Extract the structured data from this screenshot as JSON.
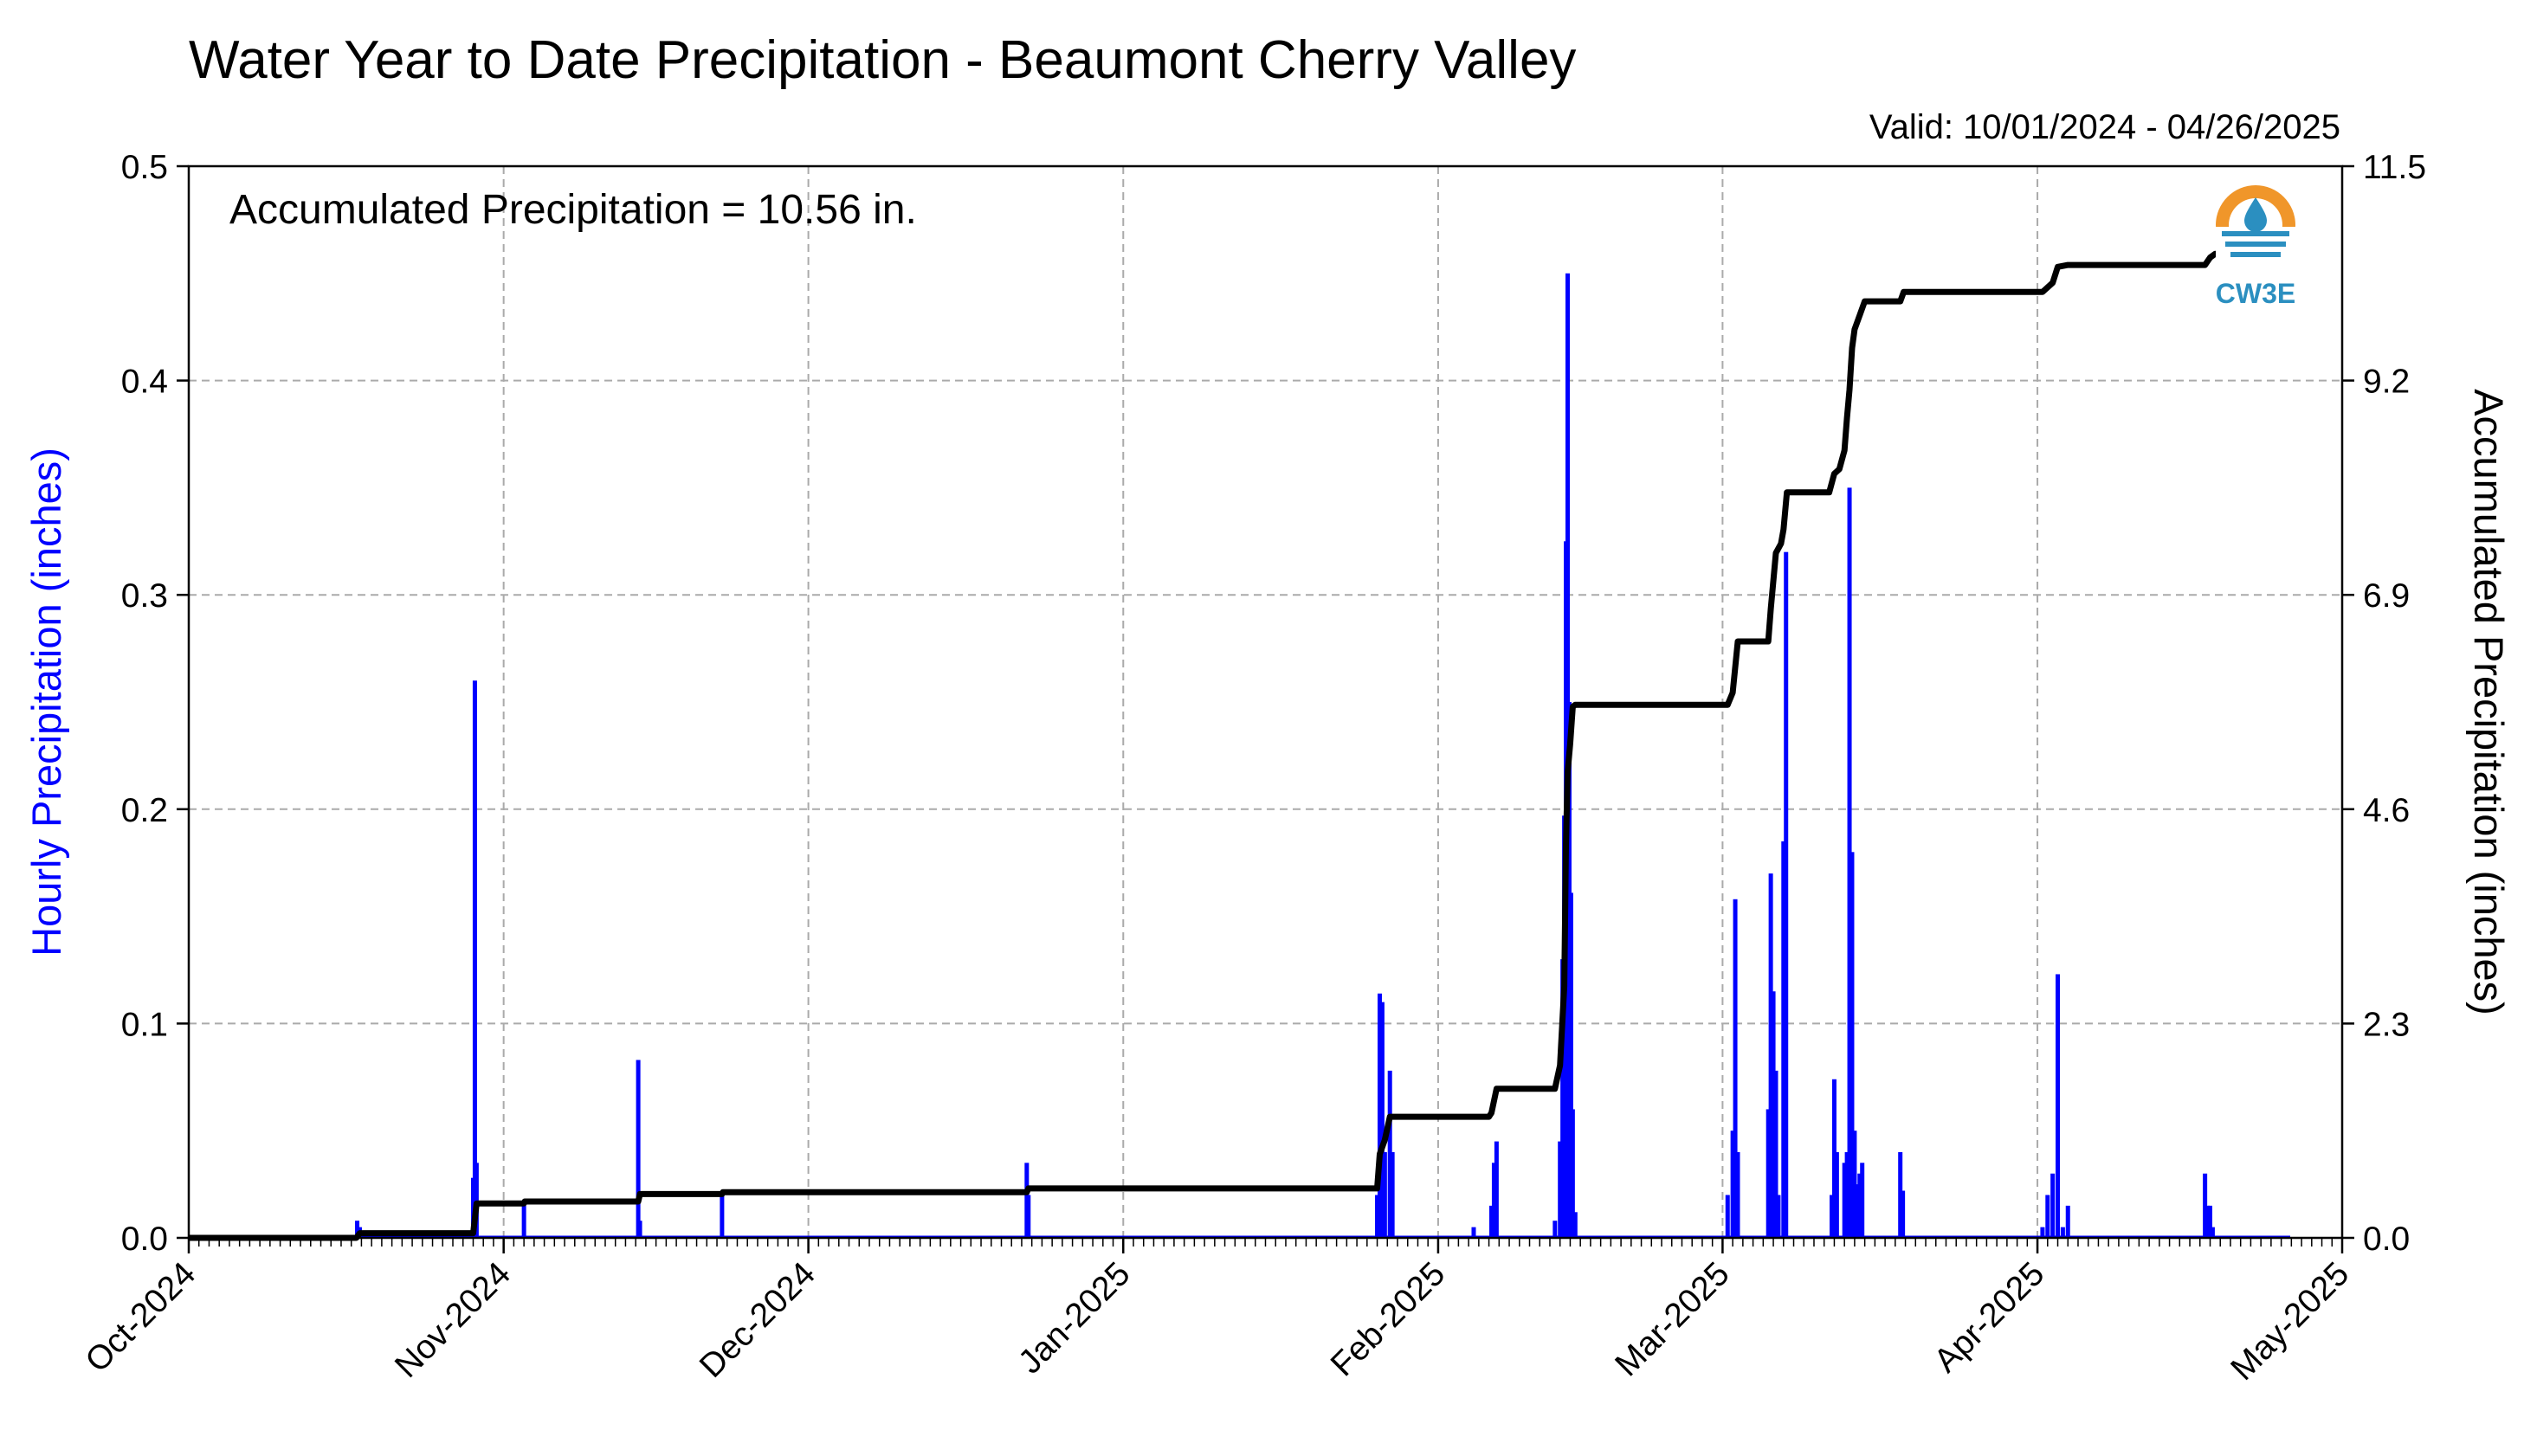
{
  "chart_data": {
    "type": "bar+line",
    "title": "Water Year to Date Precipitation - Beaumont Cherry Valley",
    "valid_label": "Valid: 10/01/2024 - 04/26/2025",
    "annotation": "Accumulated Precipitation = 10.56 in.",
    "logo_text": "CW3E",
    "ylabel_left": "Hourly Precipitation (inches)",
    "ylabel_right": "Accumulated Precipitation (inches)",
    "x_start": "2024-10-01",
    "x_end": "2025-05-01",
    "ylim_left": [
      0,
      0.5
    ],
    "ylim_right": [
      0,
      11.5
    ],
    "yticks_left": [
      "0.0",
      "0.1",
      "0.2",
      "0.3",
      "0.4",
      "0.5"
    ],
    "yticks_right": [
      "0.0",
      "2.3",
      "4.6",
      "6.9",
      "9.2",
      "11.5"
    ],
    "xticks": [
      {
        "label": "Oct-2024",
        "date": "2024-10-01"
      },
      {
        "label": "Nov-2024",
        "date": "2024-11-01"
      },
      {
        "label": "Dec-2024",
        "date": "2024-12-01"
      },
      {
        "label": "Jan-2025",
        "date": "2025-01-01"
      },
      {
        "label": "Feb-2025",
        "date": "2025-02-01"
      },
      {
        "label": "Mar-2025",
        "date": "2025-03-01"
      },
      {
        "label": "Apr-2025",
        "date": "2025-04-01"
      },
      {
        "label": "May-2025",
        "date": "2025-05-01"
      }
    ],
    "grid": true,
    "colors": {
      "hourly": "#0000ff",
      "accumulated": "#000000",
      "grid": "#aaaaaa",
      "logo": "#2b8fc0",
      "logo_ring": "#f0962a"
    },
    "hourly": [
      {
        "t": "2024-10-17T14:00",
        "v": 0.008
      },
      {
        "t": "2024-10-17T20:00",
        "v": 0.005
      },
      {
        "t": "2024-10-29T00:00",
        "v": 0.028
      },
      {
        "t": "2024-10-29T04:00",
        "v": 0.26
      },
      {
        "t": "2024-10-29T08:00",
        "v": 0.035
      },
      {
        "t": "2024-11-03T00:00",
        "v": 0.015
      },
      {
        "t": "2024-11-14T06:00",
        "v": 0.083
      },
      {
        "t": "2024-11-14T10:00",
        "v": 0.008
      },
      {
        "t": "2024-11-22T12:00",
        "v": 0.02
      },
      {
        "t": "2024-12-22T12:00",
        "v": 0.035
      },
      {
        "t": "2024-12-22T16:00",
        "v": 0.02
      },
      {
        "t": "2025-01-26T00:00",
        "v": 0.02
      },
      {
        "t": "2025-01-26T06:00",
        "v": 0.114
      },
      {
        "t": "2025-01-26T12:00",
        "v": 0.11
      },
      {
        "t": "2025-01-26T18:00",
        "v": 0.04
      },
      {
        "t": "2025-01-27T06:00",
        "v": 0.078
      },
      {
        "t": "2025-01-27T12:00",
        "v": 0.04
      },
      {
        "t": "2025-02-04T12:00",
        "v": 0.005
      },
      {
        "t": "2025-02-06T06:00",
        "v": 0.015
      },
      {
        "t": "2025-02-06T12:00",
        "v": 0.035
      },
      {
        "t": "2025-02-06T18:00",
        "v": 0.045
      },
      {
        "t": "2025-02-12T12:00",
        "v": 0.008
      },
      {
        "t": "2025-02-13T00:00",
        "v": 0.045
      },
      {
        "t": "2025-02-13T06:00",
        "v": 0.13
      },
      {
        "t": "2025-02-13T10:00",
        "v": 0.197
      },
      {
        "t": "2025-02-13T14:00",
        "v": 0.325
      },
      {
        "t": "2025-02-13T18:00",
        "v": 0.45
      },
      {
        "t": "2025-02-13T22:00",
        "v": 0.25
      },
      {
        "t": "2025-02-14T02:00",
        "v": 0.161
      },
      {
        "t": "2025-02-14T06:00",
        "v": 0.06
      },
      {
        "t": "2025-02-14T12:00",
        "v": 0.012
      },
      {
        "t": "2025-03-01T12:00",
        "v": 0.02
      },
      {
        "t": "2025-03-02T00:00",
        "v": 0.05
      },
      {
        "t": "2025-03-02T06:00",
        "v": 0.158
      },
      {
        "t": "2025-03-02T12:00",
        "v": 0.04
      },
      {
        "t": "2025-03-05T12:00",
        "v": 0.06
      },
      {
        "t": "2025-03-05T18:00",
        "v": 0.17
      },
      {
        "t": "2025-03-06T00:00",
        "v": 0.115
      },
      {
        "t": "2025-03-06T06:00",
        "v": 0.078
      },
      {
        "t": "2025-03-06T12:00",
        "v": 0.02
      },
      {
        "t": "2025-03-07T00:00",
        "v": 0.185
      },
      {
        "t": "2025-03-07T06:00",
        "v": 0.32
      },
      {
        "t": "2025-03-11T18:00",
        "v": 0.02
      },
      {
        "t": "2025-03-12T00:00",
        "v": 0.074
      },
      {
        "t": "2025-03-12T06:00",
        "v": 0.04
      },
      {
        "t": "2025-03-13T00:00",
        "v": 0.035
      },
      {
        "t": "2025-03-13T06:00",
        "v": 0.04
      },
      {
        "t": "2025-03-13T12:00",
        "v": 0.35
      },
      {
        "t": "2025-03-13T18:00",
        "v": 0.18
      },
      {
        "t": "2025-03-14T00:00",
        "v": 0.05
      },
      {
        "t": "2025-03-14T06:00",
        "v": 0.025
      },
      {
        "t": "2025-03-14T12:00",
        "v": 0.03
      },
      {
        "t": "2025-03-14T18:00",
        "v": 0.035
      },
      {
        "t": "2025-03-18T12:00",
        "v": 0.04
      },
      {
        "t": "2025-03-18T18:00",
        "v": 0.022
      },
      {
        "t": "2025-04-01T12:00",
        "v": 0.005
      },
      {
        "t": "2025-04-02T00:00",
        "v": 0.02
      },
      {
        "t": "2025-04-02T12:00",
        "v": 0.03
      },
      {
        "t": "2025-04-03T00:00",
        "v": 0.123
      },
      {
        "t": "2025-04-03T12:00",
        "v": 0.005
      },
      {
        "t": "2025-04-04T00:00",
        "v": 0.015
      },
      {
        "t": "2025-04-17T12:00",
        "v": 0.03
      },
      {
        "t": "2025-04-17T18:00",
        "v": 0.015
      },
      {
        "t": "2025-04-18T00:00",
        "v": 0.015
      },
      {
        "t": "2025-04-18T06:00",
        "v": 0.005
      }
    ],
    "accumulated": [
      {
        "t": "2024-10-01T00:00",
        "v": 0.0
      },
      {
        "t": "2024-10-17T12:00",
        "v": 0.0
      },
      {
        "t": "2024-10-17T20:00",
        "v": 0.05
      },
      {
        "t": "2024-10-29T00:00",
        "v": 0.05
      },
      {
        "t": "2024-10-29T08:00",
        "v": 0.37
      },
      {
        "t": "2024-11-03T00:00",
        "v": 0.37
      },
      {
        "t": "2024-11-03T02:00",
        "v": 0.39
      },
      {
        "t": "2024-11-14T06:00",
        "v": 0.39
      },
      {
        "t": "2024-11-14T10:00",
        "v": 0.47
      },
      {
        "t": "2024-11-22T12:00",
        "v": 0.47
      },
      {
        "t": "2024-11-22T14:00",
        "v": 0.49
      },
      {
        "t": "2024-12-22T12:00",
        "v": 0.49
      },
      {
        "t": "2024-12-22T16:00",
        "v": 0.53
      },
      {
        "t": "2025-01-26T00:00",
        "v": 0.53
      },
      {
        "t": "2025-01-26T06:00",
        "v": 0.9
      },
      {
        "t": "2025-01-26T18:00",
        "v": 1.05
      },
      {
        "t": "2025-01-27T06:00",
        "v": 1.3
      },
      {
        "t": "2025-02-06T00:00",
        "v": 1.3
      },
      {
        "t": "2025-02-06T06:00",
        "v": 1.34
      },
      {
        "t": "2025-02-06T18:00",
        "v": 1.6
      },
      {
        "t": "2025-02-12T12:00",
        "v": 1.6
      },
      {
        "t": "2025-02-13T00:00",
        "v": 1.85
      },
      {
        "t": "2025-02-13T10:00",
        "v": 2.7
      },
      {
        "t": "2025-02-13T14:00",
        "v": 4.2
      },
      {
        "t": "2025-02-13T18:00",
        "v": 5.0
      },
      {
        "t": "2025-02-14T00:00",
        "v": 5.3
      },
      {
        "t": "2025-02-14T06:00",
        "v": 5.7
      },
      {
        "t": "2025-02-14T12:00",
        "v": 5.72
      },
      {
        "t": "2025-03-01T12:00",
        "v": 5.72
      },
      {
        "t": "2025-03-02T00:00",
        "v": 5.85
      },
      {
        "t": "2025-03-02T12:00",
        "v": 6.4
      },
      {
        "t": "2025-03-05T12:00",
        "v": 6.4
      },
      {
        "t": "2025-03-05T18:00",
        "v": 6.75
      },
      {
        "t": "2025-03-06T06:00",
        "v": 7.35
      },
      {
        "t": "2025-03-06T18:00",
        "v": 7.45
      },
      {
        "t": "2025-03-07T00:00",
        "v": 7.6
      },
      {
        "t": "2025-03-07T08:00",
        "v": 8.0
      },
      {
        "t": "2025-03-11T12:00",
        "v": 8.0
      },
      {
        "t": "2025-03-12T00:00",
        "v": 8.2
      },
      {
        "t": "2025-03-12T12:00",
        "v": 8.25
      },
      {
        "t": "2025-03-13T00:00",
        "v": 8.45
      },
      {
        "t": "2025-03-13T06:00",
        "v": 8.8
      },
      {
        "t": "2025-03-13T12:00",
        "v": 9.1
      },
      {
        "t": "2025-03-13T18:00",
        "v": 9.55
      },
      {
        "t": "2025-03-14T00:00",
        "v": 9.75
      },
      {
        "t": "2025-03-14T12:00",
        "v": 9.9
      },
      {
        "t": "2025-03-15T00:00",
        "v": 10.05
      },
      {
        "t": "2025-03-18T12:00",
        "v": 10.05
      },
      {
        "t": "2025-03-18T20:00",
        "v": 10.15
      },
      {
        "t": "2025-04-01T12:00",
        "v": 10.15
      },
      {
        "t": "2025-04-02T12:00",
        "v": 10.25
      },
      {
        "t": "2025-04-03T00:00",
        "v": 10.42
      },
      {
        "t": "2025-04-04T00:00",
        "v": 10.44
      },
      {
        "t": "2025-04-17T12:00",
        "v": 10.44
      },
      {
        "t": "2025-04-18T00:00",
        "v": 10.52
      },
      {
        "t": "2025-04-18T12:00",
        "v": 10.56
      },
      {
        "t": "2025-04-26T00:00",
        "v": 10.56
      }
    ]
  }
}
